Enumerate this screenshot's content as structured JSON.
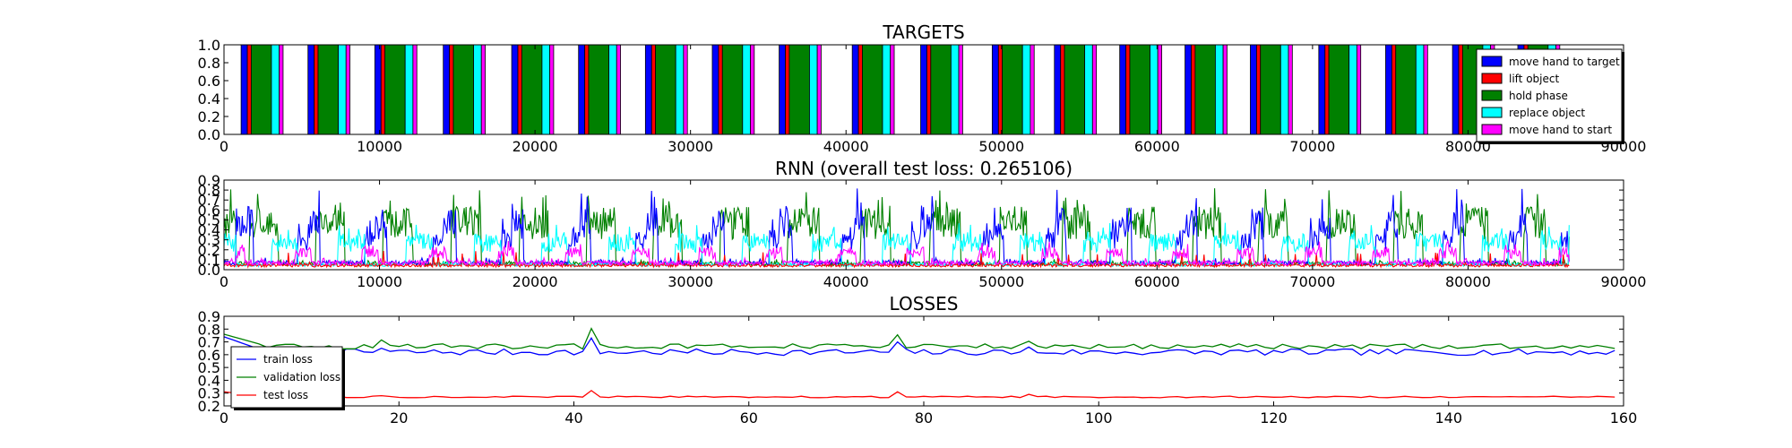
{
  "chart_data": [
    {
      "type": "bar",
      "title": "TARGETS",
      "xlabel": "",
      "ylabel": "",
      "xlim": [
        0,
        90000
      ],
      "ylim": [
        0.0,
        1.0
      ],
      "xticks": [
        "0",
        "10000",
        "20000",
        "30000",
        "40000",
        "50000",
        "60000",
        "70000",
        "80000",
        "90000"
      ],
      "yticks": [
        "0.0",
        "0.2",
        "0.4",
        "0.6",
        "0.8",
        "1.0"
      ],
      "legend_position": "bottom-right",
      "series": [
        {
          "name": "move hand to target",
          "color": "#0000ff"
        },
        {
          "name": "lift object",
          "color": "#ff0000"
        },
        {
          "name": "hold phase",
          "color": "#008000"
        },
        {
          "name": "replace object",
          "color": "#00ffff"
        },
        {
          "name": "move hand to start",
          "color": "#ff00ff"
        }
      ],
      "episode_starts": [
        1100,
        5400,
        9700,
        14100,
        18500,
        22800,
        27100,
        31400,
        35700,
        40400,
        44800,
        49400,
        53400,
        57600,
        61800,
        66000,
        70400,
        74700,
        79000,
        83200
      ],
      "phase_durations": [
        400,
        250,
        1300,
        500,
        250
      ]
    },
    {
      "type": "line",
      "title": "RNN (overall test loss: 0.265106)",
      "xlabel": "",
      "ylabel": "",
      "xlim": [
        0,
        90000
      ],
      "ylim": [
        0.0,
        0.9
      ],
      "xticks": [
        "0",
        "10000",
        "20000",
        "30000",
        "40000",
        "50000",
        "60000",
        "70000",
        "80000",
        "90000"
      ],
      "yticks": [
        "0.0",
        "0.1",
        "0.2",
        "0.3",
        "0.4",
        "0.5",
        "0.6",
        "0.7",
        "0.8",
        "0.9"
      ],
      "data_end_x": 86500,
      "series_colors": [
        "#0000ff",
        "#ff0000",
        "#008000",
        "#00ffff",
        "#ff00ff"
      ]
    },
    {
      "type": "line",
      "title": "LOSSES",
      "xlabel": "",
      "ylabel": "",
      "xlim": [
        0,
        160
      ],
      "ylim": [
        0.2,
        0.9
      ],
      "xticks": [
        "0",
        "20",
        "40",
        "60",
        "80",
        "100",
        "120",
        "140",
        "160"
      ],
      "yticks": [
        "0.2",
        "0.3",
        "0.4",
        "0.5",
        "0.6",
        "0.7",
        "0.8",
        "0.9"
      ],
      "legend_position": "bottom-left",
      "spikes_x": [
        18,
        42,
        77,
        92
      ],
      "series": [
        {
          "name": "train loss",
          "color": "#0000ff",
          "start": 0.74,
          "base": 0.62,
          "amp": 0.025,
          "spike_height": [
            0.03,
            0.11,
            0.08,
            0.04
          ]
        },
        {
          "name": "validation loss",
          "color": "#008000",
          "start": 0.76,
          "base": 0.665,
          "amp": 0.02,
          "spike_height": [
            0.05,
            0.14,
            0.09,
            0.04
          ]
        },
        {
          "name": "test loss",
          "color": "#ff0000",
          "start": 0.31,
          "base": 0.27,
          "amp": 0.006,
          "spike_height": [
            0.01,
            0.05,
            0.04,
            0.02
          ]
        }
      ],
      "x_range": [
        0,
        159
      ]
    }
  ]
}
